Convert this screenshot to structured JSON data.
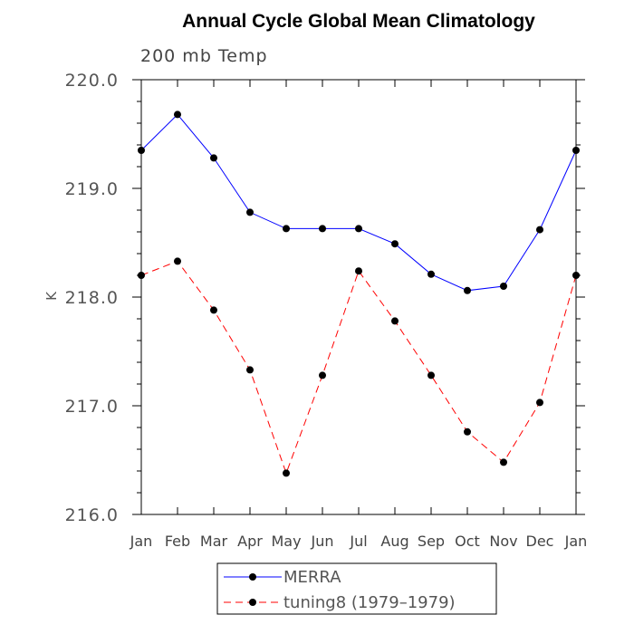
{
  "chart_data": {
    "type": "line",
    "title": "Annual Cycle Global Mean Climatology",
    "subtitle": "200 mb Temp",
    "ylabel": "K",
    "xlabel": "",
    "categories": [
      "Jan",
      "Feb",
      "Mar",
      "Apr",
      "May",
      "Jun",
      "Jul",
      "Aug",
      "Sep",
      "Oct",
      "Nov",
      "Dec",
      "Jan"
    ],
    "ylim": [
      216.0,
      220.0
    ],
    "yticks": [
      216.0,
      217.0,
      218.0,
      219.0,
      220.0
    ],
    "ytick_labels": [
      "216.0",
      "217.0",
      "218.0",
      "219.0",
      "220.0"
    ],
    "grid": false,
    "legend_position": "bottom-center",
    "series": [
      {
        "name": "MERRA",
        "color": "#0000ff",
        "line_style": "solid",
        "marker": "filled-circle",
        "values": [
          219.35,
          219.68,
          219.28,
          218.78,
          218.63,
          218.63,
          218.63,
          218.49,
          218.21,
          218.06,
          218.1,
          218.62,
          219.35
        ]
      },
      {
        "name": "tuning8 (1979–1979)",
        "color": "#ff0000",
        "line_style": "dashed",
        "marker": "filled-circle",
        "values": [
          218.2,
          218.33,
          217.88,
          217.33,
          216.38,
          217.28,
          218.24,
          217.78,
          217.28,
          216.76,
          216.48,
          217.03,
          218.2
        ]
      }
    ]
  }
}
